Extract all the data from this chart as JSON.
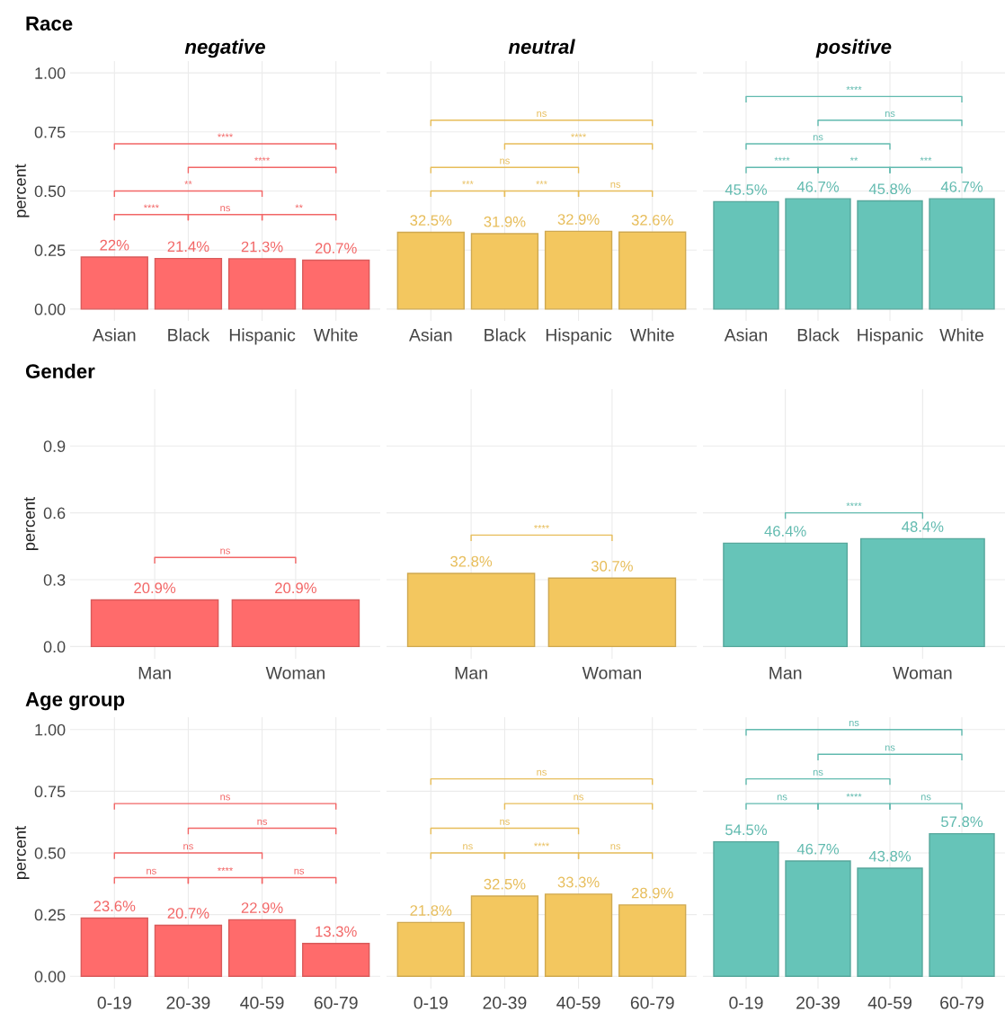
{
  "chart_data": [
    {
      "type": "bar",
      "title": "Race",
      "subtitle": "negative",
      "ylabel": "percent",
      "categories": [
        "Asian",
        "Black",
        "Hispanic",
        "White"
      ],
      "values": [
        0.22,
        0.214,
        0.213,
        0.207
      ],
      "value_labels": [
        "22%",
        "21.4%",
        "21.3%",
        "20.7%"
      ],
      "color": "#ff6b6b",
      "ylim": [
        -0.05,
        1.05
      ],
      "yticks": [
        {
          "value": 0,
          "label": "0.00"
        },
        {
          "value": 0.25,
          "label": "0.25"
        },
        {
          "value": 0.5,
          "label": "0.50"
        },
        {
          "value": 0.75,
          "label": "0.75"
        },
        {
          "value": 1,
          "label": "1.00"
        }
      ],
      "grid": true,
      "annotations": [
        "****",
        "**",
        "****",
        "ns",
        "****",
        "**"
      ]
    },
    {
      "type": "bar",
      "subtitle": "neutral",
      "categories": [
        "Asian",
        "Black",
        "Hispanic",
        "White"
      ],
      "values": [
        0.325,
        0.319,
        0.329,
        0.326
      ],
      "value_labels": [
        "32.5%",
        "31.9%",
        "32.9%",
        "32.6%"
      ],
      "color": "#f3c75f",
      "ylim": [
        -0.05,
        1.05
      ],
      "yticks": [
        0,
        0.25,
        0.5,
        0.75,
        1
      ],
      "grid": true,
      "tick_labels": "x",
      "annotations": [
        "***",
        "ns",
        "ns",
        "***",
        "****",
        "ns"
      ]
    },
    {
      "type": "bar",
      "subtitle": "positive",
      "categories": [
        "Asian",
        "Black",
        "Hispanic",
        "White"
      ],
      "values": [
        0.455,
        0.467,
        0.458,
        0.467
      ],
      "value_labels": [
        "45.5%",
        "46.7%",
        "45.8%",
        "46.7%"
      ],
      "color": "#66c4b8",
      "ylim": [
        -0.05,
        1.05
      ],
      "yticks": [
        0,
        0.25,
        0.5,
        0.75,
        1
      ],
      "grid": true,
      "tick_labels": "x",
      "annotations": [
        "****",
        "ns",
        "****",
        "**",
        "ns",
        "***"
      ]
    },
    {
      "type": "bar",
      "title": "Gender",
      "ylabel": "percent",
      "categories": [
        "Man",
        "Woman"
      ],
      "values": [
        0.209,
        0.209
      ],
      "value_labels": [
        "20.9%",
        "20.9%"
      ],
      "color": "#ff6b6b",
      "ylim": [
        -0.055,
        1.155
      ],
      "yticks": [
        {
          "value": 0,
          "label": "0.0"
        },
        {
          "value": 0.3,
          "label": "0.3"
        },
        {
          "value": 0.6,
          "label": "0.6"
        },
        {
          "value": 0.9,
          "label": "0.9"
        }
      ],
      "grid": true,
      "annotations": [
        "ns"
      ]
    },
    {
      "type": "bar",
      "categories": [
        "Man",
        "Woman"
      ],
      "values": [
        0.328,
        0.307
      ],
      "value_labels": [
        "32.8%",
        "30.7%"
      ],
      "color": "#f3c75f",
      "ylim": [
        -0.055,
        1.155
      ],
      "yticks": [
        0,
        0.3,
        0.6,
        0.9
      ],
      "grid": true,
      "tick_labels": "x",
      "annotations": [
        "****"
      ]
    },
    {
      "type": "bar",
      "categories": [
        "Man",
        "Woman"
      ],
      "values": [
        0.464,
        0.484
      ],
      "value_labels": [
        "46.4%",
        "48.4%"
      ],
      "color": "#66c4b8",
      "ylim": [
        -0.055,
        1.155
      ],
      "yticks": [
        0,
        0.3,
        0.6,
        0.9
      ],
      "grid": true,
      "tick_labels": "x",
      "annotations": [
        "****"
      ]
    },
    {
      "type": "bar",
      "title": "Age group",
      "ylabel": "percent",
      "categories": [
        "0-19",
        "20-39",
        "40-59",
        "60-79"
      ],
      "values": [
        0.236,
        0.207,
        0.229,
        0.133
      ],
      "value_labels": [
        "23.6%",
        "20.7%",
        "22.9%",
        "13.3%"
      ],
      "color": "#ff6b6b",
      "ylim": [
        -0.05,
        1.05
      ],
      "yticks": [
        {
          "value": 0,
          "label": "0.00"
        },
        {
          "value": 0.25,
          "label": "0.25"
        },
        {
          "value": 0.5,
          "label": "0.50"
        },
        {
          "value": 0.75,
          "label": "0.75"
        },
        {
          "value": 1,
          "label": "1.00"
        }
      ],
      "grid": true,
      "annotations": [
        "ns",
        "ns",
        "ns",
        "****",
        "ns",
        "ns"
      ]
    },
    {
      "type": "bar",
      "categories": [
        "0-19",
        "20-39",
        "40-59",
        "60-79"
      ],
      "values": [
        0.218,
        0.325,
        0.333,
        0.289
      ],
      "value_labels": [
        "21.8%",
        "32.5%",
        "33.3%",
        "28.9%"
      ],
      "color": "#f3c75f",
      "ylim": [
        -0.05,
        1.05
      ],
      "yticks": [
        0,
        0.25,
        0.5,
        0.75,
        1
      ],
      "grid": true,
      "tick_labels": "x",
      "annotations": [
        "ns",
        "ns",
        "ns",
        "****",
        "ns",
        "ns"
      ]
    },
    {
      "type": "bar",
      "categories": [
        "0-19",
        "20-39",
        "40-59",
        "60-79"
      ],
      "values": [
        0.545,
        0.467,
        0.438,
        0.578
      ],
      "value_labels": [
        "54.5%",
        "46.7%",
        "43.8%",
        "57.8%"
      ],
      "color": "#66c4b8",
      "ylim": [
        -0.05,
        1.05
      ],
      "yticks": [
        0,
        0.25,
        0.5,
        0.75,
        1
      ],
      "grid": true,
      "tick_labels": "x",
      "annotations": [
        "ns",
        "ns",
        "ns",
        "****",
        "ns",
        "ns"
      ]
    }
  ]
}
